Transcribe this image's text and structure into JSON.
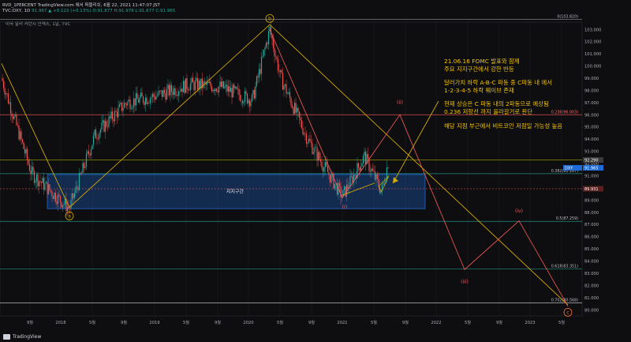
{
  "header": {
    "line1_prefix": "RVD_1PERCENT TradingView.com 에서 퍼블리쉬, 6월 22, 2021 11:47:07 JST",
    "symbol": "TVC:DXY, 1D",
    "price": "91.967",
    "change": "▲ +0.122 (+0.13%)",
    "ohlc": "O:91.877 H:91.978 L:91.677 C:91.965"
  },
  "indicator_label": "미국 달러 커런시 인덱스, 1날, TVC",
  "brand": "TradingView",
  "colors": {
    "background": "#0e0e10",
    "candle_up": "#26a69a",
    "candle_down": "#ef5350",
    "wave_line": "#d4a800",
    "projection_line": "#ff5b5b",
    "support_box": "#1e6ad6",
    "annotation_text": "#f2c200"
  },
  "chart_data": {
    "type": "candlestick",
    "y_axis_range": [
      79.5,
      103.6
    ],
    "y_ticks": [
      "103.000",
      "102.000",
      "101.000",
      "100.000",
      "99.000",
      "98.000",
      "97.000",
      "96.000",
      "95.000",
      "94.000",
      "93.000",
      "92.000",
      "91.000",
      "90.000",
      "89.000",
      "88.000",
      "87.000",
      "86.000",
      "85.000",
      "84.000",
      "83.000",
      "82.000",
      "81.000",
      "80.000"
    ],
    "x_ticks": [
      "9월",
      "2018",
      "5월",
      "9월",
      "2019",
      "5월",
      "9월",
      "2020",
      "5월",
      "9월",
      "2021",
      "5월",
      "9월",
      "2022",
      "5월",
      "9월",
      "2023",
      "5월"
    ],
    "current_price_label": "92.290",
    "dxy_label": "DXY",
    "dxy_value": "91.965",
    "dashed_level_label": "89.931",
    "fib_levels": [
      {
        "label": "0(103.820)",
        "value": 103.82
      },
      {
        "label": "0.236(96.003)",
        "value": 96.003
      },
      {
        "label": "0.382(91.167)",
        "value": 91.167
      },
      {
        "label": "0.5(87.259)",
        "value": 87.259
      },
      {
        "label": "0.618(83.351)",
        "value": 83.351
      },
      {
        "label": "0.702(80.568)",
        "value": 80.568
      }
    ],
    "support_zone": {
      "label": "지지구간",
      "range": [
        88.3,
        91.1
      ]
    },
    "wave_labels": [
      {
        "text": "a",
        "value": 88.3
      },
      {
        "text": "b",
        "value": 103.6
      },
      {
        "text": "c",
        "value": 80.2
      },
      {
        "text": "(i)",
        "value": 88.9
      },
      {
        "text": "(ii)",
        "value": 96.4
      },
      {
        "text": "(iii)",
        "value": 82.6
      },
      {
        "text": "(iv)",
        "value": 87.3
      }
    ],
    "annotations": [
      "21.06.16 FOMC 발표와 함께",
      "주요 지지구간에서 강한 반등",
      "달러가치 하락 A-B-C 파동 중 C파동 내 에서",
      "1-2-3-4-5 하락 웨이브 존재",
      "현재 상승은 C 파동 내의 2파동으로 예상됨",
      "0.236 저항선 까지 올라갈거로 판단",
      "해당 지점 부근에서 비트코인 저점일 가능성 높음"
    ]
  }
}
